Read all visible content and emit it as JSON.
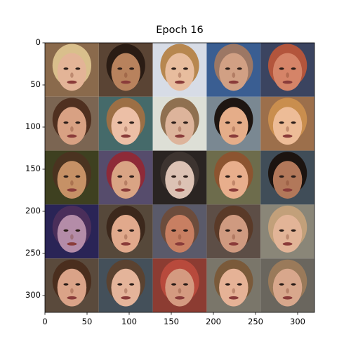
{
  "figure": {
    "title": "Epoch 16"
  },
  "chart_data": {
    "type": "image_grid",
    "title": "Epoch 16",
    "xlabel": "",
    "ylabel": "",
    "xlim": [
      0,
      320
    ],
    "ylim": [
      320,
      0
    ],
    "grid_rows": 5,
    "grid_cols": 5,
    "cell_size": 64,
    "xticks": [
      0,
      50,
      100,
      150,
      200,
      250,
      300
    ],
    "yticks": [
      0,
      50,
      100,
      150,
      200,
      250,
      300
    ],
    "xtick_labels": [
      "0",
      "50",
      "100",
      "150",
      "200",
      "250",
      "300"
    ],
    "ytick_labels": [
      "0",
      "50",
      "100",
      "150",
      "200",
      "250",
      "300"
    ],
    "cells": [
      {
        "row": 0,
        "col": 0,
        "bg": "#8a6a4c",
        "skin": "#e3b497",
        "hair": "#d9bf8c"
      },
      {
        "row": 0,
        "col": 1,
        "bg": "#5a4434",
        "skin": "#b8825d",
        "hair": "#2a1c14"
      },
      {
        "row": 0,
        "col": 2,
        "bg": "#d7dce6",
        "skin": "#e8bd9e",
        "hair": "#b7874f"
      },
      {
        "row": 0,
        "col": 3,
        "bg": "#3a5e92",
        "skin": "#d1a084",
        "hair": "#9c7764"
      },
      {
        "row": 0,
        "col": 4,
        "bg": "#3b4460",
        "skin": "#d58468",
        "hair": "#b3553c"
      },
      {
        "row": 1,
        "col": 0,
        "bg": "#7b6552",
        "skin": "#d8a183",
        "hair": "#4f3020"
      },
      {
        "row": 1,
        "col": 1,
        "bg": "#456a6a",
        "skin": "#ecbfa6",
        "hair": "#9c6f45"
      },
      {
        "row": 1,
        "col": 2,
        "bg": "#dddfd6",
        "skin": "#ddb49b",
        "hair": "#8f7050"
      },
      {
        "row": 1,
        "col": 3,
        "bg": "#7a8892",
        "skin": "#e5ad89",
        "hair": "#1e1612"
      },
      {
        "row": 1,
        "col": 4,
        "bg": "#9c6f4b",
        "skin": "#edbc97",
        "hair": "#c98e4e"
      },
      {
        "row": 2,
        "col": 0,
        "bg": "#3e4020",
        "skin": "#c69166",
        "hair": "#4a3320"
      },
      {
        "row": 2,
        "col": 1,
        "bg": "#564c6c",
        "skin": "#d9a484",
        "hair": "#8e2a38"
      },
      {
        "row": 2,
        "col": 2,
        "bg": "#2a2422",
        "skin": "#dcc2b4",
        "hair": "#3d3430"
      },
      {
        "row": 2,
        "col": 3,
        "bg": "#6d6c4c",
        "skin": "#e8ae8c",
        "hair": "#8c5430"
      },
      {
        "row": 2,
        "col": 4,
        "bg": "#404d58",
        "skin": "#b2785a",
        "hair": "#1c1410"
      },
      {
        "row": 3,
        "col": 0,
        "bg": "#2a2456",
        "skin": "#b48ca8",
        "hair": "#4a2e5a"
      },
      {
        "row": 3,
        "col": 1,
        "bg": "#56483a",
        "skin": "#e1a98c",
        "hair": "#3c281c"
      },
      {
        "row": 3,
        "col": 2,
        "bg": "#5a5a6a",
        "skin": "#c87f62",
        "hair": "#6c4c3c"
      },
      {
        "row": 3,
        "col": 3,
        "bg": "#5d4e46",
        "skin": "#cf9a80",
        "hair": "#5a3a28"
      },
      {
        "row": 3,
        "col": 4,
        "bg": "#8a8678",
        "skin": "#e2b497",
        "hair": "#c2a07a"
      },
      {
        "row": 4,
        "col": 0,
        "bg": "#5a4a3c",
        "skin": "#daa388",
        "hair": "#4a2e1e"
      },
      {
        "row": 4,
        "col": 1,
        "bg": "#44505a",
        "skin": "#e4b49a",
        "hair": "#5a4230"
      },
      {
        "row": 4,
        "col": 2,
        "bg": "#8c3c32",
        "skin": "#d49a80",
        "hair": "#b84a3c"
      },
      {
        "row": 4,
        "col": 3,
        "bg": "#7a766a",
        "skin": "#e5b296",
        "hair": "#7a5a3a"
      },
      {
        "row": 4,
        "col": 4,
        "bg": "#6a665e",
        "skin": "#d8a78c",
        "hair": "#9a7a5a"
      }
    ]
  }
}
